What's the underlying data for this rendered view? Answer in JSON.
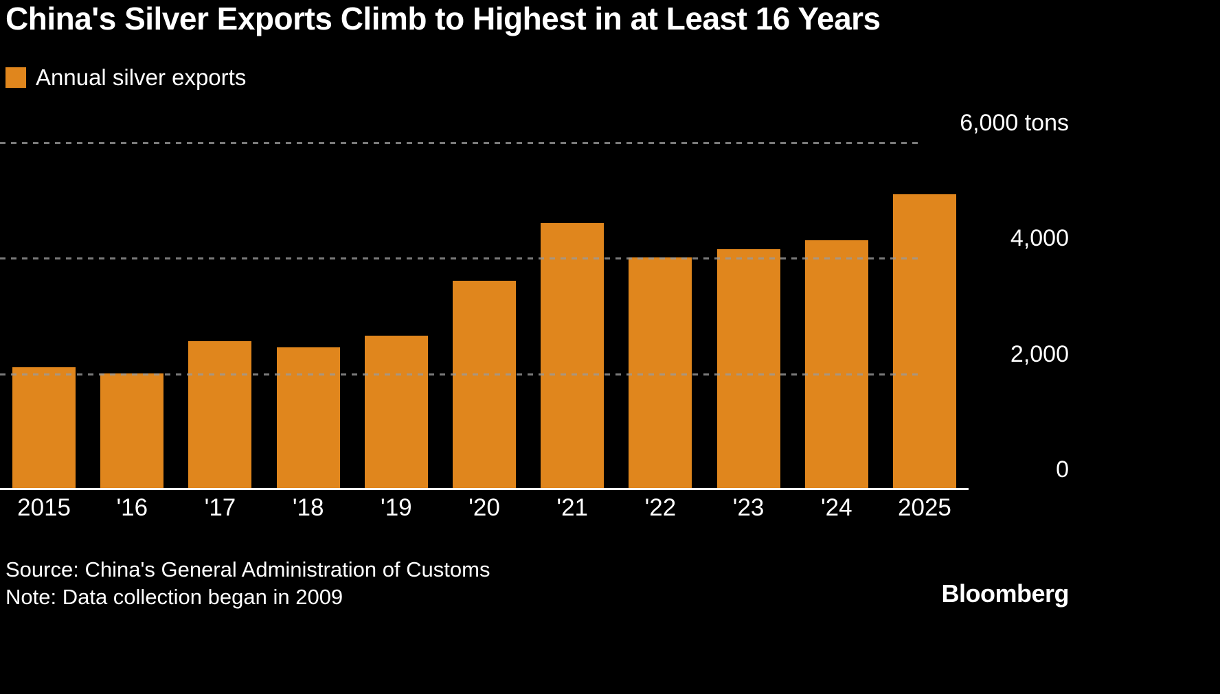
{
  "title": "China's Silver Exports Climb to Highest in at Least 16 Years",
  "legend": {
    "label": "Annual silver exports"
  },
  "footer": {
    "source_line": "Source: China's General Administration of Customs",
    "note_line": "Note: Data collection began in 2009",
    "brand": "Bloomberg"
  },
  "colors": {
    "background": "#000000",
    "bar": "#E0861D",
    "grid": "#9A9A9A",
    "axis": "#FFFFFF",
    "text": "#FFFFFF"
  },
  "chart_data": {
    "type": "bar",
    "title": "China's Silver Exports Climb to Highest in at Least 16 Years",
    "series_name": "Annual silver exports",
    "categories": [
      "2015",
      "'16",
      "'17",
      "'18",
      "'19",
      "'20",
      "'21",
      "'22",
      "'23",
      "'24",
      "2025"
    ],
    "values": [
      2100,
      2000,
      2550,
      2450,
      2650,
      3600,
      4600,
      4000,
      4150,
      4300,
      5100
    ],
    "unit": "tons",
    "xlabel": "",
    "ylabel": "",
    "ylim": [
      0,
      6000
    ],
    "yticks": [
      {
        "value": 6000,
        "label": "6,000 tons"
      },
      {
        "value": 4000,
        "label": "4,000"
      },
      {
        "value": 2000,
        "label": "2,000"
      },
      {
        "value": 0,
        "label": "0"
      }
    ],
    "grid": "horizontal-dashed",
    "legend_position": "top-left"
  }
}
